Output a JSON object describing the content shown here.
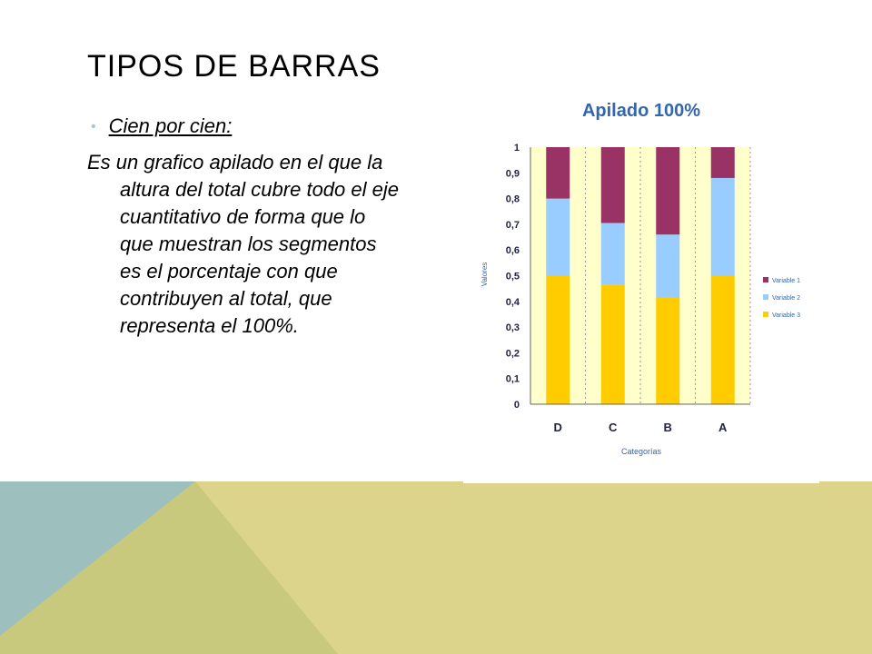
{
  "slide": {
    "title": "TIPOS DE BARRAS",
    "bullet": "Cien por cien:",
    "body": "Es un grafico apilado en el que la altura del total cubre todo el eje cuantitativo de forma que lo que muestran los segmentos es el porcentaje con que contribuyen al total, que representa el 100%."
  },
  "colors": {
    "deco_teal": "#9dbfbd",
    "deco_olive": "#c9c97e",
    "deco_yellow": "#dbd48a",
    "plot_bg": "#ffffcc",
    "variable_1": "#993366",
    "variable_2": "#99ccff",
    "variable_3": "#ffcc00",
    "title_blue": "#3366aa"
  },
  "chart_data": {
    "type": "bar",
    "stacked": "100%",
    "title": "Apilado 100%",
    "xlabel": "Categorías",
    "ylabel": "Valores",
    "categories": [
      "D",
      "C",
      "B",
      "A"
    ],
    "series": [
      {
        "name": "Variable 3",
        "values": [
          0.5,
          0.465,
          0.415,
          0.5
        ]
      },
      {
        "name": "Variable 2",
        "values": [
          0.3,
          0.24,
          0.245,
          0.38
        ]
      },
      {
        "name": "Variable 1",
        "values": [
          0.2,
          0.295,
          0.34,
          0.12
        ]
      }
    ],
    "ylim": [
      0,
      1
    ],
    "yticks": [
      "0",
      "0,1",
      "0,2",
      "0,3",
      "0,4",
      "0,5",
      "0,6",
      "0,7",
      "0,8",
      "0,9",
      "1"
    ],
    "grid": "vertical dashed",
    "legend": "right"
  }
}
